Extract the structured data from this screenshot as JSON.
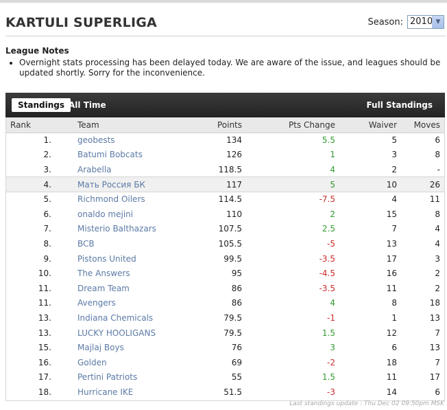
{
  "header": {
    "title": "KARTULI SUPERLIGA",
    "season_label": "Season:",
    "season_value": "2010"
  },
  "notes": {
    "title": "League Notes",
    "items": [
      "Overnight stats processing has been delayed today. We are aware of the issue, and leagues should be updated shortly. Sorry for the inconvenience."
    ]
  },
  "tabs": {
    "standings": "Standings",
    "all_time": "All Time",
    "full_standings": "Full Standings"
  },
  "table": {
    "columns": [
      "Rank",
      "Team",
      "Points",
      "Pts Change",
      "Waiver",
      "Moves"
    ],
    "rows": [
      {
        "rank": "1.",
        "team": "geobests",
        "points": "134",
        "change": "5.5",
        "waiver": "5",
        "moves": "6"
      },
      {
        "rank": "2.",
        "team": "Batumi Bobcats",
        "points": "126",
        "change": "1",
        "waiver": "3",
        "moves": "8"
      },
      {
        "rank": "3.",
        "team": "Arabella",
        "points": "118.5",
        "change": "4",
        "waiver": "2",
        "moves": "-"
      },
      {
        "rank": "4.",
        "team": "Мать Россия БК",
        "points": "117",
        "change": "5",
        "waiver": "10",
        "moves": "26"
      },
      {
        "rank": "5.",
        "team": "Richmond Oilers",
        "points": "114.5",
        "change": "-7.5",
        "waiver": "4",
        "moves": "11"
      },
      {
        "rank": "6.",
        "team": "onaldo mejini",
        "points": "110",
        "change": "2",
        "waiver": "15",
        "moves": "8"
      },
      {
        "rank": "7.",
        "team": "Misterio Balthazars",
        "points": "107.5",
        "change": "2.5",
        "waiver": "7",
        "moves": "4"
      },
      {
        "rank": "8.",
        "team": "BCB",
        "points": "105.5",
        "change": "-5",
        "waiver": "13",
        "moves": "4"
      },
      {
        "rank": "9.",
        "team": "Pistons United",
        "points": "99.5",
        "change": "-3.5",
        "waiver": "17",
        "moves": "3"
      },
      {
        "rank": "10.",
        "team": "The Answers",
        "points": "95",
        "change": "-4.5",
        "waiver": "16",
        "moves": "2"
      },
      {
        "rank": "11.",
        "team": "Dream Team",
        "points": "86",
        "change": "-3.5",
        "waiver": "11",
        "moves": "2"
      },
      {
        "rank": "11.",
        "team": "Avengers",
        "points": "86",
        "change": "4",
        "waiver": "8",
        "moves": "18"
      },
      {
        "rank": "13.",
        "team": "Indiana Chemicals",
        "points": "79.5",
        "change": "-1",
        "waiver": "1",
        "moves": "13"
      },
      {
        "rank": "13.",
        "team": "LUCKY HOOLIGANS",
        "points": "79.5",
        "change": "1.5",
        "waiver": "12",
        "moves": "7"
      },
      {
        "rank": "15.",
        "team": "Majlaj Boys",
        "points": "76",
        "change": "3",
        "waiver": "6",
        "moves": "13"
      },
      {
        "rank": "16.",
        "team": "Golden",
        "points": "69",
        "change": "-2",
        "waiver": "18",
        "moves": "7"
      },
      {
        "rank": "17.",
        "team": "Pertini Patriots",
        "points": "55",
        "change": "1.5",
        "waiver": "11",
        "moves": "17"
      },
      {
        "rank": "18.",
        "team": "Hurricane IKE",
        "points": "51.5",
        "change": "-3",
        "waiver": "14",
        "moves": "6"
      }
    ]
  },
  "footer": {
    "update_text": "Last standings update : Thu Dec 02 09:50pm MSK"
  },
  "colors": {
    "team_link": "#5b7aa6",
    "positive": "#2f9a2f",
    "negative": "#cc2a2a",
    "tabbar": "#2d2d2d"
  }
}
